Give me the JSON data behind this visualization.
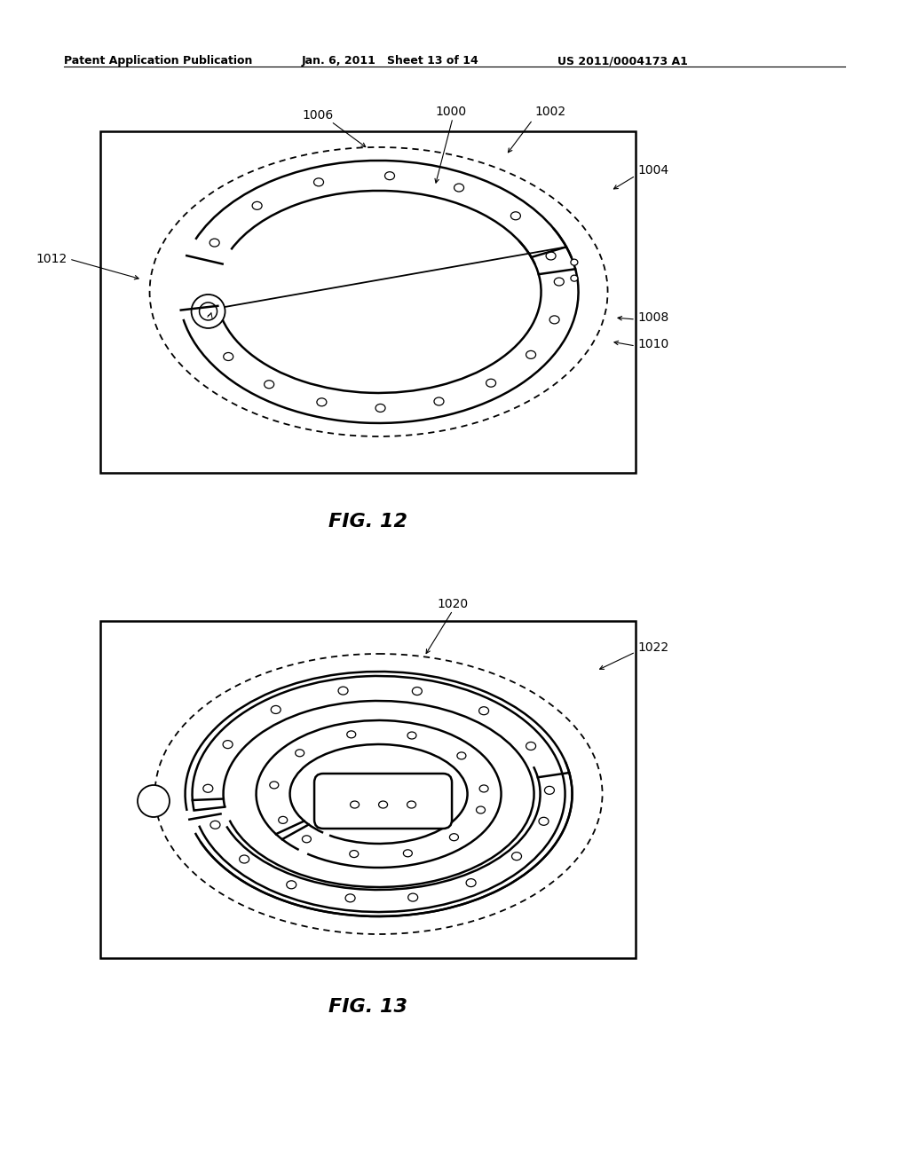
{
  "header_left": "Patent Application Publication",
  "header_mid": "Jan. 6, 2011   Sheet 13 of 14",
  "header_right": "US 2011/0004173 A1",
  "fig12_title": "FIG. 12",
  "fig13_title": "FIG. 13",
  "bg_color": "#ffffff"
}
